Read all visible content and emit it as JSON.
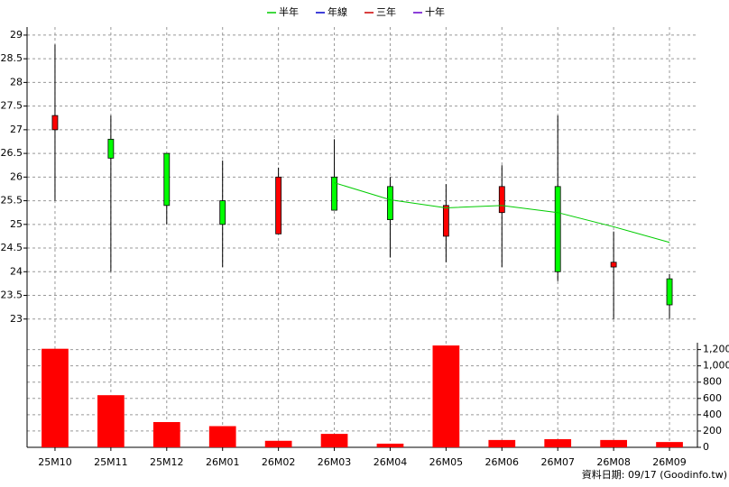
{
  "chart_data": {
    "type": "candlestick",
    "categories": [
      "25M10",
      "25M11",
      "25M12",
      "26M01",
      "26M02",
      "26M03",
      "26M04",
      "26M05",
      "26M06",
      "26M07",
      "26M08",
      "26M09"
    ],
    "open": [
      27.0,
      26.8,
      26.5,
      25.5,
      24.8,
      26.0,
      25.8,
      24.75,
      25.25,
      25.8,
      24.1,
      23.85
    ],
    "high": [
      28.8,
      27.3,
      26.5,
      26.35,
      26.2,
      26.8,
      26.0,
      25.85,
      26.25,
      27.3,
      24.85,
      23.95
    ],
    "low": [
      25.5,
      24.0,
      25.0,
      24.1,
      24.8,
      25.3,
      24.3,
      24.2,
      24.1,
      23.8,
      23.0,
      23.0
    ],
    "close": [
      27.3,
      26.4,
      25.4,
      25.0,
      26.0,
      25.3,
      25.1,
      25.4,
      25.8,
      24.0,
      24.2,
      23.3
    ],
    "up_color": "#ff0000",
    "down_color": "#00ff00",
    "ylim": [
      22.5,
      29.17
    ],
    "yticks": [
      23,
      23.5,
      24,
      24.5,
      25,
      25.5,
      26,
      26.5,
      27,
      27.5,
      28,
      28.5,
      29
    ],
    "grid": true,
    "legend": "top",
    "lines": [
      {
        "name": "半年",
        "color": "#00cc00",
        "values": [
          null,
          null,
          null,
          null,
          null,
          25.88,
          25.52,
          25.35,
          25.4,
          25.25,
          24.95,
          24.62
        ]
      },
      {
        "name": "年線",
        "color": "#0000cc",
        "values": [
          null,
          null,
          null,
          null,
          null,
          null,
          null,
          null,
          null,
          null,
          null,
          null
        ]
      },
      {
        "name": "三年",
        "color": "#cc0000",
        "values": [
          null,
          null,
          null,
          null,
          null,
          null,
          null,
          null,
          null,
          null,
          null,
          null
        ]
      },
      {
        "name": "十年",
        "color": "#6600cc",
        "values": [
          null,
          null,
          null,
          null,
          null,
          null,
          null,
          null,
          null,
          null,
          null,
          null
        ]
      }
    ],
    "volume": {
      "color": "#ff0000",
      "values": [
        1210,
        640,
        310,
        260,
        80,
        165,
        45,
        1250,
        90,
        100,
        90,
        65
      ],
      "y2lim": [
        0,
        1240
      ],
      "y2ticks": [
        0,
        200,
        400,
        600,
        800,
        {
          "value": 1000,
          "label": "1,000"
        },
        {
          "value": 1200,
          "label": "1,200"
        }
      ]
    },
    "source": "資料日期: 09/17  (Goodinfo.tw)"
  }
}
